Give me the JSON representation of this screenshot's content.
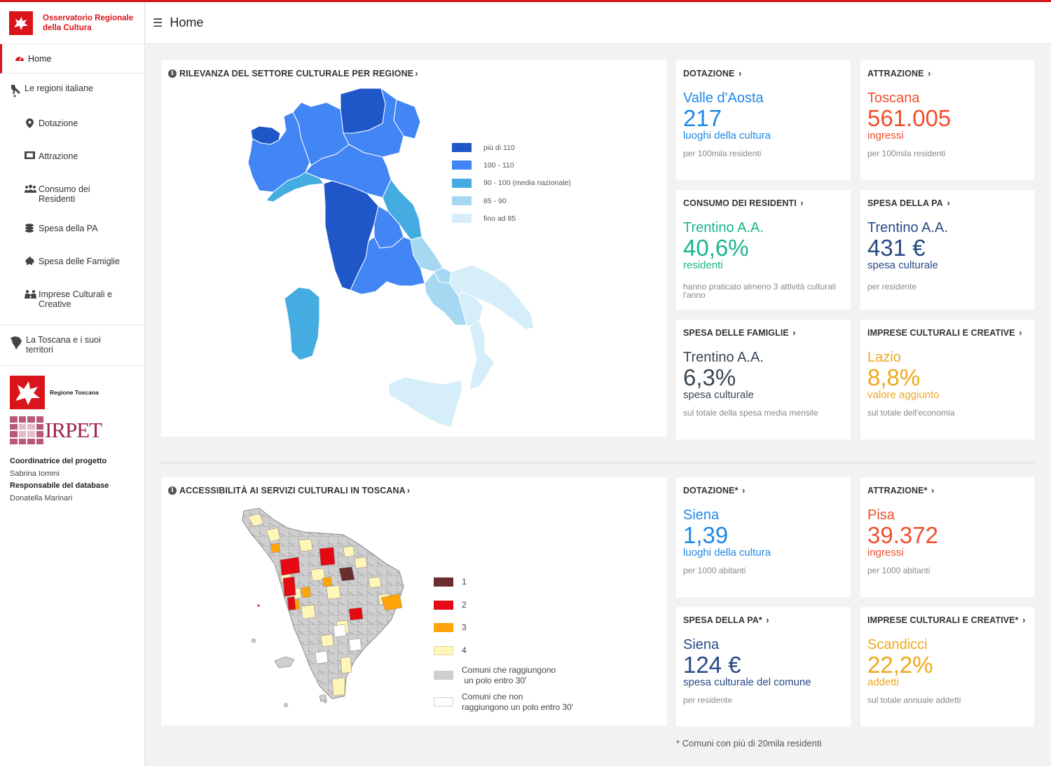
{
  "sidebar": {
    "brand": {
      "line1": "Osservatorio Regionale",
      "line2": "della Cultura"
    },
    "home": "Home",
    "group1": "Le regioni italiane",
    "items": [
      {
        "label": "Dotazione",
        "icon": "location-pin-icon"
      },
      {
        "label": "Attrazione",
        "icon": "ticket-icon"
      },
      {
        "label": "Consumo dei",
        "label2": "Residenti",
        "icon": "users-icon"
      },
      {
        "label": "Spesa della PA",
        "icon": "coins-icon"
      },
      {
        "label": "Spesa delle Famiglie",
        "icon": "piggy-bank-icon"
      },
      {
        "label": "Imprese Culturali e",
        "label2": "Creative",
        "icon": "workers-icon"
      }
    ],
    "group2": {
      "line1": "La Toscana e i suoi",
      "line2": "territori"
    },
    "logo_rt": "Regione Toscana",
    "logo_irpet": "IRPET",
    "credits": {
      "coord_label": "Coordinatrice del progetto",
      "coord_name": "Sabrina Iommi",
      "db_label": "Responsabile del database",
      "db_name": "Donatella Marinari"
    }
  },
  "header": {
    "title": "Home"
  },
  "map1": {
    "title": "RILEVANZA DEL SETTORE CULTURALE PER REGIONE",
    "legend": [
      {
        "label": "più di 110",
        "color": "#1f56c8"
      },
      {
        "label": "100 - 110",
        "color": "#4285f4"
      },
      {
        "label": "90 - 100 (media nazionale)",
        "color": "#45ace2"
      },
      {
        "label": "85 - 90",
        "color": "#a7d8f2"
      },
      {
        "label": "fino ad 85",
        "color": "#d5eefa"
      }
    ]
  },
  "stats1": [
    {
      "title": "DOTAZIONE",
      "region": "Valle d'Aosta",
      "value": "217",
      "unit": "luoghi della cultura",
      "note": "per 100mila residenti",
      "color": "#1e88e5"
    },
    {
      "title": "ATTRAZIONE",
      "region": "Toscana",
      "value": "561.005",
      "unit": "ingressi",
      "note": "per 100mila residenti",
      "color": "#f04e2c"
    },
    {
      "title": "CONSUMO DEI RESIDENTI",
      "region": "Trentino A.A.",
      "value": "40,6%",
      "unit": "residenti",
      "note": "hanno praticato almeno 3 attività culturali l'anno",
      "color": "#18b58a"
    },
    {
      "title": "SPESA DELLA PA",
      "region": "Trentino A.A.",
      "value": "431 €",
      "unit": "spesa culturale",
      "note": "per residente",
      "color": "#284a86"
    },
    {
      "title": "SPESA DELLE FAMIGLIE",
      "region": "Trentino A.A.",
      "value": "6,3%",
      "unit": "spesa culturale",
      "note": "sul totale della spesa media mensile",
      "color": "#3b4653"
    },
    {
      "title": "IMPRESE CULTURALI E CREATIVE",
      "region": "Lazio",
      "value": "8,8%",
      "unit": "valore aggiunto",
      "note": "sul totale dell'economia",
      "color": "#f0a81a"
    }
  ],
  "map2": {
    "title": "ACCESSIBILITÀ AI SERVIZI CULTURALI IN TOSCANA",
    "legend": [
      {
        "label": "1",
        "color": "#6b2e2e"
      },
      {
        "label": "2",
        "color": "#e50914"
      },
      {
        "label": "3",
        "color": "#ffa40a"
      },
      {
        "label": "4",
        "color": "#fff6b8"
      },
      {
        "label": "Comuni che raggiungono",
        "label2": "un polo entro 30'",
        "color": "#cfcfcf"
      },
      {
        "label": "Comuni che non",
        "label2": "raggiungono un polo entro 30'",
        "color": "#ffffff"
      }
    ]
  },
  "stats2": [
    {
      "title": "DOTAZIONE*",
      "region": "Siena",
      "value": "1,39",
      "unit": "luoghi della cultura",
      "note": "per 1000 abitanti",
      "color": "#1e88e5"
    },
    {
      "title": "ATTRAZIONE*",
      "region": "Pisa",
      "value": "39.372",
      "unit": "ingressi",
      "note": "per 1000 abitanti",
      "color": "#f04e2c"
    },
    {
      "title": "SPESA DELLA PA*",
      "region": "Siena",
      "value": "124 €",
      "unit": "spesa culturale del comune",
      "note": "per residente",
      "color": "#284a86"
    },
    {
      "title": "IMPRESE CULTURALI E CREATIVE*",
      "region": "Scandicci",
      "value": "22,2%",
      "unit": "addetti",
      "note": "sul totale annuale addetti",
      "color": "#f0a81a"
    }
  ],
  "footnote": "* Comuni con più di 20mila residenti"
}
